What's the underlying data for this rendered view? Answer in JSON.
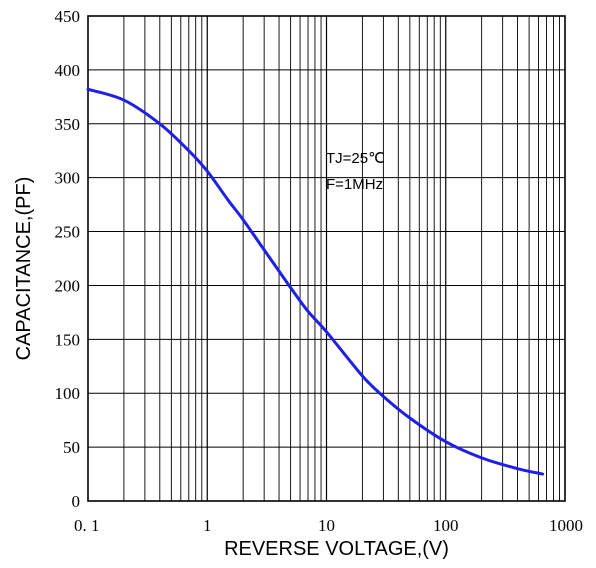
{
  "chart_data": {
    "type": "line",
    "title": "",
    "xlabel": "REVERSE VOLTAGE,(V)",
    "ylabel": "CAPACITANCE,(PF)",
    "x_scale": "log",
    "y_scale": "linear",
    "xlim": [
      0.1,
      1000
    ],
    "ylim": [
      0,
      450
    ],
    "x_tick_labels": [
      "0. 1",
      "1",
      "10",
      "100",
      "1000"
    ],
    "y_tick_labels": [
      "0",
      "50",
      "100",
      "150",
      "200",
      "250",
      "300",
      "350",
      "400",
      "450"
    ],
    "grid": true,
    "annotations": [
      "TJ=25℃",
      "F=1MHz"
    ],
    "line_color": "#1f1fe6",
    "series": [
      {
        "x": [
          0.1,
          0.2,
          0.4,
          0.7,
          1,
          1.5,
          2,
          3,
          5,
          7,
          10,
          20,
          30,
          50,
          100,
          200,
          400,
          650
        ],
        "y": [
          382,
          372,
          350,
          325,
          306,
          279,
          261,
          233,
          198,
          176,
          157,
          116,
          97,
          77,
          55,
          40,
          30,
          25
        ]
      }
    ]
  }
}
